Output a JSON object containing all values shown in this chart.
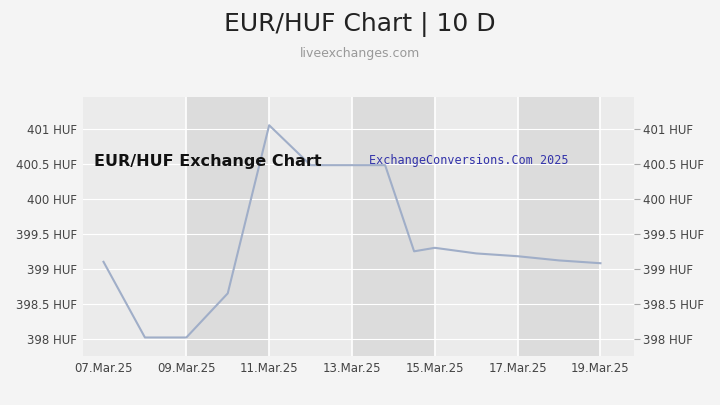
{
  "title": "EUR/HUF Chart | 10 D",
  "subtitle": "liveexchanges.com",
  "watermark": "ExchangeConversions.Com 2025",
  "chart_label": "EUR/HUF Exchange Chart",
  "x_labels": [
    "07.Mar.25",
    "09.Mar.25",
    "11.Mar.25",
    "13.Mar.25",
    "15.Mar.25",
    "17.Mar.25",
    "19.Mar.25"
  ],
  "x_tick_pos": [
    0,
    2,
    4,
    6,
    8,
    10,
    12
  ],
  "y_ticks": [
    398,
    398.5,
    399,
    399.5,
    400,
    400.5,
    401
  ],
  "y_tick_labels": [
    "398 HUF",
    "398.5 HUF",
    "399 HUF",
    "399.5 HUF",
    "400 HUF",
    "400.5 HUF",
    "401 HUF"
  ],
  "ylim": [
    397.75,
    401.45
  ],
  "xlim": [
    -0.5,
    12.8
  ],
  "data_x": [
    0.0,
    1.0,
    2.0,
    3.0,
    4.0,
    5.0,
    6.0,
    6.8,
    7.5,
    8.0,
    9.0,
    10.0,
    11.0,
    12.0
  ],
  "data_y": [
    399.1,
    398.02,
    398.02,
    398.65,
    401.05,
    400.48,
    400.48,
    400.48,
    399.25,
    399.3,
    399.22,
    399.18,
    399.12,
    399.08
  ],
  "line_color": "#a0aec8",
  "fig_bg_color": "#f4f4f4",
  "plot_bg_color": "#e8e8e8",
  "stripe_light": "#ebebeb",
  "stripe_dark": "#dcdcdc",
  "grid_color": "#ffffff",
  "title_color": "#222222",
  "subtitle_color": "#999999",
  "chart_label_color": "#111111",
  "watermark_color": "#3333aa",
  "band_edges": [
    -0.5,
    2,
    4,
    6,
    8,
    10,
    12,
    12.8
  ],
  "vline_x": [
    2,
    4,
    6,
    8,
    10,
    12
  ]
}
